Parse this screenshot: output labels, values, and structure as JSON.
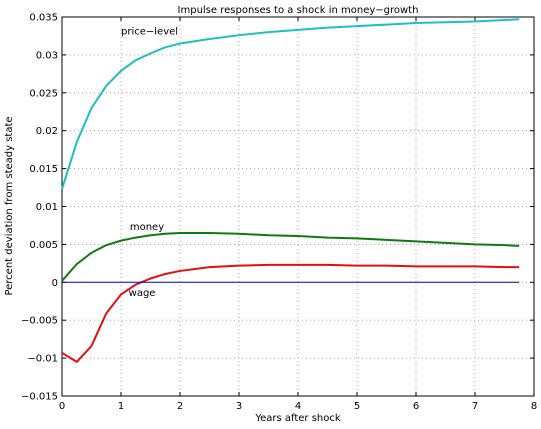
{
  "chart_data": {
    "type": "line",
    "title": "Impulse responses to a shock in money−growth",
    "xlabel": "Years after shock",
    "ylabel": "Percent deviation from steady state",
    "xlim": [
      0,
      8
    ],
    "ylim": [
      -0.015,
      0.035
    ],
    "grid": true,
    "x_ticks": [
      "0",
      "1",
      "2",
      "3",
      "4",
      "5",
      "6",
      "7",
      "8"
    ],
    "y_ticks": [
      "−0.015",
      "−0.01",
      "−0.005",
      "0",
      "0.005",
      "0.01",
      "0.015",
      "0.02",
      "0.025",
      "0.03",
      "0.035"
    ],
    "series": [
      {
        "name": "price−level",
        "color": "#1fbfbf",
        "x": [
          0,
          0.25,
          0.5,
          0.75,
          1.0,
          1.25,
          1.5,
          1.75,
          2.0,
          2.5,
          3.0,
          3.5,
          4.0,
          4.5,
          5.0,
          5.5,
          6.0,
          6.5,
          7.0,
          7.5,
          7.75
        ],
        "y": [
          0.0123,
          0.0185,
          0.023,
          0.0259,
          0.0279,
          0.0293,
          0.0302,
          0.031,
          0.0315,
          0.0321,
          0.0326,
          0.033,
          0.0333,
          0.0336,
          0.0338,
          0.034,
          0.0342,
          0.0343,
          0.0344,
          0.0346,
          0.0347
        ]
      },
      {
        "name": "money",
        "color": "#0f7a0f",
        "x": [
          0,
          0.25,
          0.5,
          0.75,
          1.0,
          1.25,
          1.5,
          1.75,
          2.0,
          2.25,
          2.5,
          3.0,
          3.5,
          4.0,
          4.5,
          5.0,
          5.5,
          6.0,
          6.5,
          7.0,
          7.5,
          7.75
        ],
        "y": [
          0.0002,
          0.0024,
          0.0039,
          0.0049,
          0.0055,
          0.0059,
          0.0062,
          0.0064,
          0.0065,
          0.0065,
          0.0065,
          0.0064,
          0.0062,
          0.0061,
          0.0059,
          0.0058,
          0.0056,
          0.0054,
          0.0052,
          0.005,
          0.0049,
          0.0048
        ]
      },
      {
        "name": "wage",
        "color": "#e01010",
        "x": [
          0,
          0.25,
          0.5,
          0.75,
          1.0,
          1.25,
          1.5,
          1.75,
          2.0,
          2.5,
          3.0,
          3.5,
          4.0,
          4.5,
          5.0,
          5.5,
          6.0,
          6.5,
          7.0,
          7.5,
          7.75
        ],
        "y": [
          -0.0093,
          -0.0105,
          -0.0084,
          -0.0041,
          -0.0016,
          -0.0003,
          0.0005,
          0.0011,
          0.0015,
          0.002,
          0.0022,
          0.0023,
          0.0023,
          0.0023,
          0.0022,
          0.0022,
          0.0021,
          0.0021,
          0.0021,
          0.002,
          0.002
        ]
      },
      {
        "name": "",
        "color": "#0000cc",
        "x": [
          0,
          7.75
        ],
        "y": [
          0,
          0
        ]
      }
    ],
    "annotations": [
      {
        "text": "price−level",
        "x": 1.0,
        "y": 0.0327
      },
      {
        "text": "money",
        "x": 1.15,
        "y": 0.0069
      },
      {
        "text": "wage",
        "x": 1.13,
        "y": -0.0018
      }
    ]
  }
}
